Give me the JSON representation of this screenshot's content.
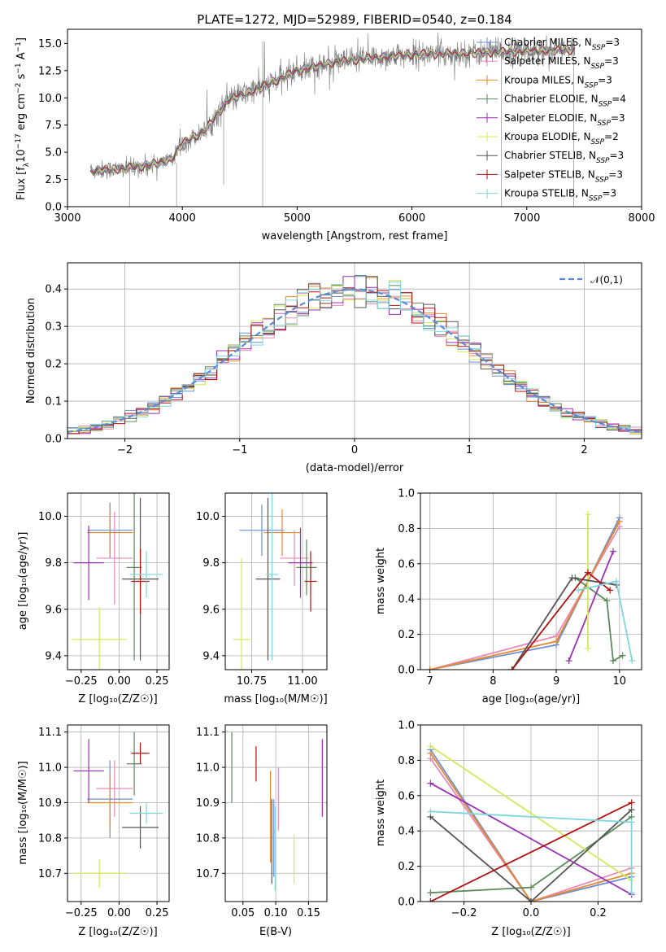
{
  "figure_title": "PLATE=1272, MJD=52989, FIBERID=0540, z=0.184",
  "colors": {
    "Chabrier MILES": "#6a8fd8",
    "Salpeter MILES": "#e98ab8",
    "Kroupa MILES": "#e6892c",
    "Chabrier ELODIE": "#5b8a5b",
    "Salpeter ELODIE": "#9b2fb5",
    "Kroupa ELODIE": "#d4e85a",
    "Chabrier STELIB": "#555555",
    "Salpeter STELIB": "#b01010",
    "Kroupa STELIB": "#7ed6dc"
  },
  "legend_entries": [
    {
      "name": "Chabrier MILES",
      "nssp": "3"
    },
    {
      "name": "Salpeter MILES",
      "nssp": "3"
    },
    {
      "name": "Kroupa MILES",
      "nssp": "3"
    },
    {
      "name": "Chabrier ELODIE",
      "nssp": "4"
    },
    {
      "name": "Salpeter ELODIE",
      "nssp": "3"
    },
    {
      "name": "Kroupa ELODIE",
      "nssp": "2"
    },
    {
      "name": "Chabrier STELIB",
      "nssp": "3"
    },
    {
      "name": "Salpeter STELIB",
      "nssp": "3"
    },
    {
      "name": "Kroupa STELIB",
      "nssp": "3"
    }
  ],
  "chart_data": [
    {
      "id": "spectrum",
      "type": "line",
      "xlabel": "wavelength [Angstrom, rest frame]",
      "ylabel": "Flux [f_λ 10^-17 erg cm^-2 s^-1 A^-1]",
      "xlim": [
        3000,
        8000
      ],
      "ylim": [
        0,
        16.3
      ],
      "xticks": [
        "3000",
        "4000",
        "5000",
        "6000",
        "7000",
        "8000"
      ],
      "yticks": [
        "0.0",
        "2.5",
        "5.0",
        "7.5",
        "10.0",
        "12.5",
        "15.0"
      ],
      "data_range": [
        3200,
        7420
      ],
      "continuum": [
        [
          3200,
          3.3
        ],
        [
          3500,
          3.5
        ],
        [
          3700,
          3.8
        ],
        [
          3900,
          4.3
        ],
        [
          4000,
          5.8
        ],
        [
          4200,
          7.0
        ],
        [
          4400,
          9.8
        ],
        [
          4700,
          11.0
        ],
        [
          5000,
          12.5
        ],
        [
          5300,
          13.2
        ],
        [
          5600,
          13.6
        ],
        [
          6000,
          14.0
        ],
        [
          6500,
          14.1
        ],
        [
          7000,
          14.3
        ],
        [
          7420,
          14.4
        ]
      ],
      "legend_loc": "upper right",
      "grid": false
    },
    {
      "id": "residuals",
      "type": "histogram",
      "xlabel": "(data-model)/error",
      "ylabel": "Normed distribution",
      "xlim": [
        -2.5,
        2.5
      ],
      "ylim": [
        0,
        0.47
      ],
      "xticks": [
        "−2",
        "−1",
        "0",
        "1",
        "2"
      ],
      "yticks": [
        "0.0",
        "0.1",
        "0.2",
        "0.3",
        "0.4"
      ],
      "bin_width": 0.1,
      "reference": {
        "label": "𝒩(0,1)",
        "mean": 0,
        "sigma": 1
      },
      "legend_loc": "upper right",
      "grid": true
    },
    {
      "id": "age_vs_Z",
      "type": "scatter_errorbar",
      "xlabel": "Z [log₁₀(Z/Z☉)]",
      "ylabel": "age [log₁₀(age/yr)]",
      "xlim": [
        -0.34,
        0.33
      ],
      "ylim": [
        9.34,
        10.1
      ],
      "xticks": [
        -0.25,
        0,
        0.25
      ],
      "xtick_labels": [
        "−0.25",
        "0.00",
        "0.25"
      ],
      "yticks": [
        9.4,
        9.6,
        9.8,
        10.0
      ],
      "ytick_labels": [
        "9.4",
        "9.6",
        "9.8",
        "10.0"
      ],
      "grid": true,
      "points": [
        {
          "series": "Chabrier MILES",
          "x": -0.06,
          "xerr": 0.15,
          "y": 9.94,
          "yerr": 0.12
        },
        {
          "series": "Salpeter MILES",
          "x": -0.03,
          "xerr": 0.12,
          "y": 9.82,
          "yerr": 0.2
        },
        {
          "series": "Kroupa MILES",
          "x": -0.06,
          "xerr": 0.15,
          "y": 9.93,
          "yerr": 0.1
        },
        {
          "series": "Chabrier ELODIE",
          "x": 0.1,
          "xerr": 0.05,
          "y": 9.78,
          "yerr": 0.4
        },
        {
          "series": "Salpeter ELODIE",
          "x": -0.2,
          "xerr": 0.1,
          "y": 9.8,
          "yerr": 0.16
        },
        {
          "series": "Kroupa ELODIE",
          "x": -0.13,
          "xerr": 0.18,
          "y": 9.47,
          "yerr": 0.14
        },
        {
          "series": "Chabrier STELIB",
          "x": 0.14,
          "xerr": 0.12,
          "y": 9.73,
          "yerr": 0.35
        },
        {
          "series": "Salpeter STELIB",
          "x": 0.14,
          "xerr": 0.06,
          "y": 9.72,
          "yerr": 0.14
        },
        {
          "series": "Kroupa STELIB",
          "x": 0.18,
          "xerr": 0.11,
          "y": 9.75,
          "yerr": 0.1
        }
      ]
    },
    {
      "id": "age_vs_mass",
      "type": "scatter_errorbar",
      "xlabel": "mass [log₁₀(M/M☉)]",
      "ylabel": "",
      "xlim": [
        10.62,
        11.12
      ],
      "ylim": [
        9.34,
        10.1
      ],
      "xticks": [
        10.75,
        11.0
      ],
      "xtick_labels": [
        "10.75",
        "11.00"
      ],
      "yticks": [
        9.4,
        9.6,
        9.8,
        10.0
      ],
      "ytick_labels": [
        "9.4",
        "9.6",
        "9.8",
        "10.0"
      ],
      "grid": true,
      "points": [
        {
          "series": "Chabrier MILES",
          "x": 10.8,
          "xerr": 0.11,
          "y": 9.94,
          "yerr": 0.11
        },
        {
          "series": "Salpeter MILES",
          "x": 10.96,
          "xerr": 0.07,
          "y": 9.82,
          "yerr": 0.12
        },
        {
          "series": "Kroupa MILES",
          "x": 10.9,
          "xerr": 0.09,
          "y": 9.93,
          "yerr": 0.1
        },
        {
          "series": "Chabrier ELODIE",
          "x": 11.02,
          "xerr": 0.05,
          "y": 9.78,
          "yerr": 0.12
        },
        {
          "series": "Salpeter ELODIE",
          "x": 10.99,
          "xerr": 0.06,
          "y": 9.8,
          "yerr": 0.15
        },
        {
          "series": "Kroupa ELODIE",
          "x": 10.7,
          "xerr": 0.04,
          "y": 9.47,
          "yerr": 0.35
        },
        {
          "series": "Chabrier STELIB",
          "x": 10.83,
          "xerr": 0.06,
          "y": 9.73,
          "yerr": 0.35
        },
        {
          "series": "Salpeter STELIB",
          "x": 11.04,
          "xerr": 0.03,
          "y": 9.72,
          "yerr": 0.13
        },
        {
          "series": "Kroupa STELIB",
          "x": 10.85,
          "xerr": 0.03,
          "y": 9.75,
          "yerr": 0.37
        }
      ]
    },
    {
      "id": "mw_vs_age",
      "type": "line",
      "xlabel": "age [log₁₀(age/yr)]",
      "ylabel": "mass weight",
      "xlim": [
        6.85,
        10.35
      ],
      "ylim": [
        0,
        1
      ],
      "xticks": [
        7,
        8,
        9,
        10
      ],
      "xtick_labels": [
        "7",
        "8",
        "9",
        "10"
      ],
      "yticks": [
        0,
        0.2,
        0.4,
        0.6,
        0.8,
        1.0
      ],
      "ytick_labels": [
        "0.0",
        "0.2",
        "0.4",
        "0.6",
        "0.8",
        "1.0"
      ],
      "grid": true,
      "series": [
        {
          "name": "Chabrier MILES",
          "x": [
            7.0,
            9.0,
            10.0
          ],
          "y": [
            0.0,
            0.14,
            0.86
          ]
        },
        {
          "name": "Salpeter MILES",
          "x": [
            7.0,
            9.0,
            10.0
          ],
          "y": [
            0.0,
            0.19,
            0.81
          ]
        },
        {
          "name": "Kroupa MILES",
          "x": [
            7.0,
            9.0,
            10.0
          ],
          "y": [
            0.0,
            0.16,
            0.84
          ]
        },
        {
          "name": "Chabrier ELODIE",
          "x": [
            9.3,
            9.8,
            9.9,
            10.05
          ],
          "y": [
            0.52,
            0.39,
            0.05,
            0.08
          ]
        },
        {
          "name": "Salpeter ELODIE",
          "x": [
            9.2,
            9.9
          ],
          "y": [
            0.05,
            0.67
          ]
        },
        {
          "name": "Kroupa ELODIE",
          "x": [
            9.5,
            9.5
          ],
          "y": [
            0.12,
            0.88
          ]
        },
        {
          "name": "Chabrier STELIB",
          "x": [
            8.3,
            9.25,
            9.95
          ],
          "y": [
            0.0,
            0.52,
            0.48
          ]
        },
        {
          "name": "Salpeter STELIB",
          "x": [
            8.3,
            9.5,
            9.85
          ],
          "y": [
            0.0,
            0.55,
            0.45
          ]
        },
        {
          "name": "Kroupa STELIB",
          "x": [
            9.35,
            9.95,
            10.2
          ],
          "y": [
            0.45,
            0.5,
            0.05
          ]
        }
      ]
    },
    {
      "id": "mass_vs_Z",
      "type": "scatter_errorbar",
      "xlabel": "Z [log₁₀(Z/Z☉)]",
      "ylabel": "mass [log₁₀(M/M☉)]",
      "xlim": [
        -0.34,
        0.33
      ],
      "ylim": [
        10.62,
        11.12
      ],
      "xticks": [
        -0.25,
        0,
        0.25
      ],
      "xtick_labels": [
        "−0.25",
        "0.00",
        "0.25"
      ],
      "yticks": [
        10.7,
        10.8,
        10.9,
        11.0,
        11.1
      ],
      "ytick_labels": [
        "10.7",
        "10.8",
        "10.9",
        "11.0",
        "11.1"
      ],
      "grid": true,
      "points": [
        {
          "series": "Chabrier MILES",
          "x": -0.06,
          "xerr": 0.15,
          "y": 10.91,
          "yerr": 0.11
        },
        {
          "series": "Salpeter MILES",
          "x": -0.03,
          "xerr": 0.12,
          "y": 10.94,
          "yerr": 0.08
        },
        {
          "series": "Kroupa MILES",
          "x": -0.06,
          "xerr": 0.15,
          "y": 10.9,
          "yerr": 0.08
        },
        {
          "series": "Chabrier ELODIE",
          "x": 0.1,
          "xerr": 0.05,
          "y": 11.01,
          "yerr": 0.09
        },
        {
          "series": "Salpeter ELODIE",
          "x": -0.2,
          "xerr": 0.1,
          "y": 10.99,
          "yerr": 0.09
        },
        {
          "series": "Kroupa ELODIE",
          "x": -0.13,
          "xerr": 0.18,
          "y": 10.7,
          "yerr": 0.04
        },
        {
          "series": "Chabrier STELIB",
          "x": 0.14,
          "xerr": 0.12,
          "y": 10.83,
          "yerr": 0.06
        },
        {
          "series": "Salpeter STELIB",
          "x": 0.14,
          "xerr": 0.06,
          "y": 11.04,
          "yerr": 0.03
        },
        {
          "series": "Kroupa STELIB",
          "x": 0.18,
          "xerr": 0.11,
          "y": 10.87,
          "yerr": 0.03
        }
      ]
    },
    {
      "id": "mass_vs_EBV",
      "type": "scatter_errorbar",
      "xlabel": "E(B-V)",
      "ylabel": "",
      "xlim": [
        0.023,
        0.178
      ],
      "ylim": [
        10.62,
        11.12
      ],
      "xticks": [
        0.05,
        0.1,
        0.15
      ],
      "xtick_labels": [
        "0.05",
        "0.10",
        "0.15"
      ],
      "yticks": [
        10.7,
        10.8,
        10.9,
        11.0,
        11.1
      ],
      "ytick_labels": [
        "10.7",
        "10.8",
        "10.9",
        "11.0",
        "11.1"
      ],
      "grid": true,
      "points": [
        {
          "series": "Chabrier MILES",
          "x": 0.097,
          "xerr": 0,
          "y": 10.8,
          "yerr": 0.11
        },
        {
          "series": "Salpeter MILES",
          "x": 0.104,
          "xerr": 0,
          "y": 10.91,
          "yerr": 0.09
        },
        {
          "series": "Kroupa MILES",
          "x": 0.092,
          "xerr": 0,
          "y": 10.86,
          "yerr": 0.13
        },
        {
          "series": "Chabrier ELODIE",
          "x": 0.033,
          "xerr": 0,
          "y": 11.0,
          "yerr": 0.1
        },
        {
          "series": "Salpeter ELODIE",
          "x": 0.171,
          "xerr": 0,
          "y": 10.97,
          "yerr": 0.11
        },
        {
          "series": "Kroupa ELODIE",
          "x": 0.128,
          "xerr": 0,
          "y": 10.74,
          "yerr": 0.07
        },
        {
          "series": "Chabrier STELIB",
          "x": 0.094,
          "xerr": 0,
          "y": 10.79,
          "yerr": 0.12
        },
        {
          "series": "Salpeter STELIB",
          "x": 0.07,
          "xerr": 0,
          "y": 11.01,
          "yerr": 0.05
        },
        {
          "series": "Kroupa STELIB",
          "x": 0.099,
          "xerr": 0,
          "y": 10.77,
          "yerr": 0.12
        }
      ]
    },
    {
      "id": "mw_vs_Z",
      "type": "line",
      "xlabel": "Z [log₁₀(Z/Z☉)]",
      "ylabel": "mass weight",
      "xlim": [
        -0.33,
        0.33
      ],
      "ylim": [
        0,
        1
      ],
      "xticks": [
        -0.2,
        0,
        0.2
      ],
      "xtick_labels": [
        "−0.2",
        "0.0",
        "0.2"
      ],
      "yticks": [
        0,
        0.2,
        0.4,
        0.6,
        0.8,
        1.0
      ],
      "ytick_labels": [
        "0.0",
        "0.2",
        "0.4",
        "0.6",
        "0.8",
        "1.0"
      ],
      "grid": true,
      "series": [
        {
          "name": "Chabrier MILES",
          "x": [
            -0.3,
            0.0,
            0.3
          ],
          "y": [
            0.86,
            0.0,
            0.14
          ]
        },
        {
          "name": "Salpeter MILES",
          "x": [
            -0.3,
            0.0,
            0.3
          ],
          "y": [
            0.81,
            0.0,
            0.19
          ]
        },
        {
          "name": "Kroupa MILES",
          "x": [
            -0.3,
            0.0,
            0.3
          ],
          "y": [
            0.84,
            0.0,
            0.16
          ]
        },
        {
          "name": "Chabrier ELODIE",
          "x": [
            -0.3,
            0.0,
            0.3
          ],
          "y": [
            0.05,
            0.08,
            0.48
          ]
        },
        {
          "name": "Salpeter ELODIE",
          "x": [
            -0.3,
            0.3
          ],
          "y": [
            0.67,
            0.04
          ]
        },
        {
          "name": "Kroupa ELODIE",
          "x": [
            -0.3,
            0.3
          ],
          "y": [
            0.88,
            0.12
          ]
        },
        {
          "name": "Chabrier STELIB",
          "x": [
            -0.3,
            0.0,
            0.3
          ],
          "y": [
            0.48,
            0.0,
            0.52
          ]
        },
        {
          "name": "Salpeter STELIB",
          "x": [
            -0.3,
            0.3
          ],
          "y": [
            0.0,
            0.56
          ]
        },
        {
          "name": "Kroupa STELIB",
          "x": [
            -0.3,
            0.3,
            0.3
          ],
          "y": [
            0.51,
            0.45,
            0.05
          ]
        }
      ]
    }
  ]
}
